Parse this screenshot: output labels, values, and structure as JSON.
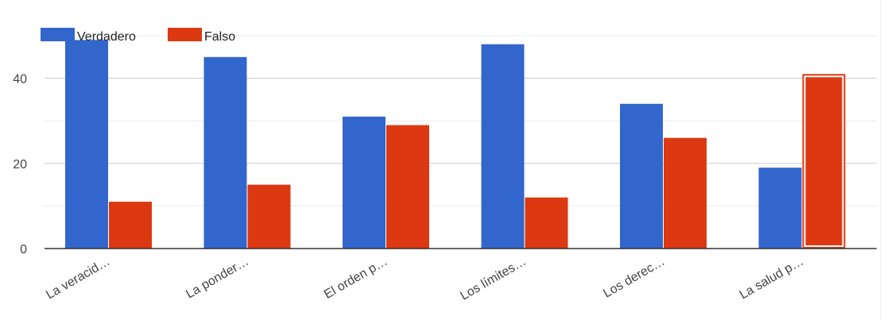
{
  "chart_data": {
    "type": "bar",
    "categories": [
      "La veracid…",
      "La ponder…",
      "El orden p…",
      "Los límites…",
      "Los derec…",
      "La salud p…"
    ],
    "series": [
      {
        "name": "Verdadero",
        "values": [
          49,
          45,
          31,
          48,
          34,
          19
        ]
      },
      {
        "name": "Falso",
        "values": [
          11,
          15,
          29,
          12,
          26,
          41
        ]
      }
    ],
    "ylim": [
      0,
      50
    ],
    "yticks": [
      0,
      20,
      40
    ],
    "grid": true,
    "legend_position": "top-left",
    "highlighted_bar": {
      "series": "Falso",
      "category": "La salud p…"
    }
  },
  "colors": {
    "Verdadero": "#3366cc",
    "Falso": "#dc3912",
    "grid_major": "#cccccc",
    "grid_minor": "#ebebeb",
    "axis": "#333333"
  }
}
